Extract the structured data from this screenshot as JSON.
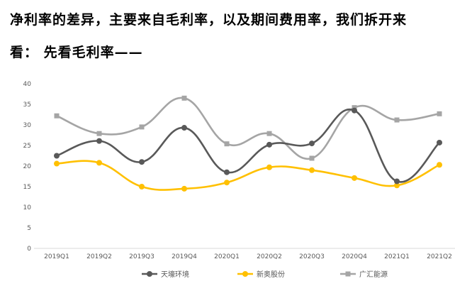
{
  "text": {
    "line1": "净利率的差异，主要来自毛利率，以及期间费用率，我们拆开来",
    "line2": "看：    先看毛利率——"
  },
  "chart_data": {
    "type": "line",
    "title": "",
    "xlabel": "",
    "ylabel": "",
    "categories": [
      "2019Q1",
      "2019Q2",
      "2019Q3",
      "2019Q4",
      "2020Q1",
      "2020Q2",
      "2020Q3",
      "2020Q4",
      "2021Q1",
      "2021Q2"
    ],
    "ylim": [
      0,
      40
    ],
    "yticks": [
      0,
      5,
      10,
      15,
      20,
      25,
      30,
      35,
      40
    ],
    "grid": false,
    "smooth": true,
    "legend_position": "bottom",
    "series": [
      {
        "name": "天壕环境",
        "color": "#595959",
        "marker": "circle",
        "values": [
          22.5,
          26.1,
          21.0,
          29.3,
          18.5,
          25.2,
          25.5,
          33.5,
          16.3,
          25.7
        ]
      },
      {
        "name": "新奥股份",
        "color": "#FFC000",
        "marker": "circle",
        "values": [
          20.6,
          20.8,
          15.0,
          14.5,
          16.0,
          19.7,
          19.0,
          17.1,
          15.3,
          20.3
        ]
      },
      {
        "name": "广汇能源",
        "color": "#A5A5A5",
        "marker": "square",
        "values": [
          32.2,
          27.9,
          29.5,
          36.5,
          25.4,
          27.9,
          21.9,
          34.2,
          31.2,
          32.7
        ]
      }
    ]
  }
}
